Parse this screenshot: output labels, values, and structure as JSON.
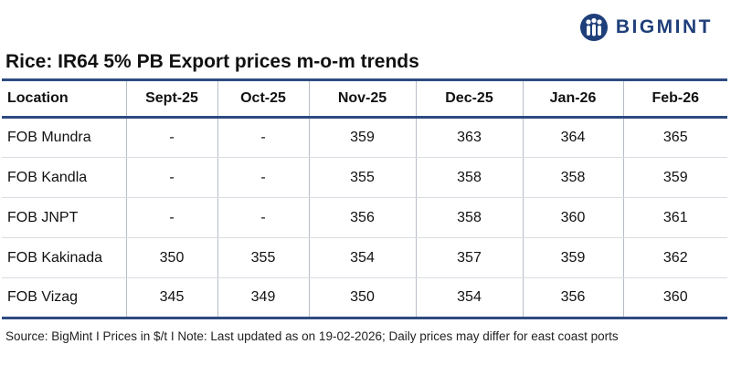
{
  "brand": {
    "name": "BIGMINT",
    "accent": "#1f3f7a"
  },
  "title": "Rice: IR64 5% PB Export prices m-o-m trends",
  "table": {
    "headers": [
      "Location",
      "Sept-25",
      "Oct-25",
      "Nov-25",
      "Dec-25",
      "Jan-26",
      "Feb-26"
    ],
    "rows": [
      [
        "FOB Mundra",
        "-",
        "-",
        "359",
        "363",
        "364",
        "365"
      ],
      [
        "FOB Kandla",
        "-",
        "-",
        "355",
        "358",
        "358",
        "359"
      ],
      [
        "FOB JNPT",
        "-",
        "-",
        "356",
        "358",
        "360",
        "361"
      ],
      [
        "FOB Kakinada",
        "350",
        "355",
        "354",
        "357",
        "359",
        "362"
      ],
      [
        "FOB Vizag",
        "345",
        "349",
        "350",
        "354",
        "356",
        "360"
      ]
    ]
  },
  "source": "Source: BigMint I Prices in $/t I Note: Last updated as on 19-02-2026; Daily prices may differ for east coast ports"
}
